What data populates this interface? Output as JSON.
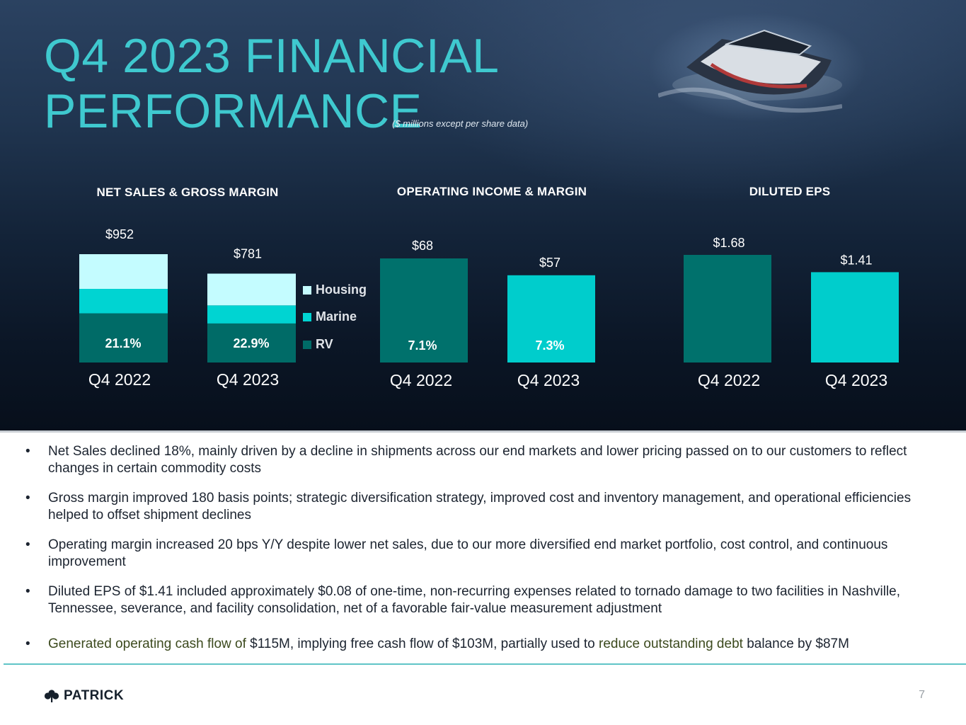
{
  "header": {
    "title_line1": "Q4 2023 FINANCIAL",
    "title_line2": "PERFORMANCE",
    "subtitle": "($ millions except per share data)"
  },
  "colors": {
    "housing": "#c4fcff",
    "marine": "#00d4d2",
    "rv": "#006b67",
    "q4_2022_bar": "#00716c",
    "q4_2023_bar": "#00cdcc",
    "title": "#3fc9cf",
    "highlight_text": "#3c4a1e"
  },
  "chart_data": [
    {
      "type": "bar",
      "stacked": true,
      "title": "NET SALES & GROSS MARGIN",
      "categories": [
        "Q4 2022",
        "Q4 2023"
      ],
      "totals": [
        952,
        781
      ],
      "total_labels": [
        "$952",
        "$781"
      ],
      "series": [
        {
          "name": "RV",
          "values": [
            432,
            343
          ]
        },
        {
          "name": "Marine",
          "values": [
            215,
            159
          ]
        },
        {
          "name": "Housing",
          "values": [
            305,
            279
          ]
        }
      ],
      "legend": [
        "Housing",
        "Marine",
        "RV"
      ],
      "legend_position": "right",
      "inner_labels": [
        "21.1%",
        "22.9%"
      ],
      "inner_label_meaning": "gross margin"
    },
    {
      "type": "bar",
      "title": "OPERATING INCOME & MARGIN",
      "categories": [
        "Q4 2022",
        "Q4 2023"
      ],
      "values": [
        68,
        57
      ],
      "value_labels": [
        "$68",
        "$57"
      ],
      "inner_labels": [
        "7.1%",
        "7.3%"
      ],
      "inner_label_meaning": "operating margin"
    },
    {
      "type": "bar",
      "title": "DILUTED EPS",
      "categories": [
        "Q4 2022",
        "Q4 2023"
      ],
      "values": [
        1.68,
        1.41
      ],
      "value_labels": [
        "$1.68",
        "$1.41"
      ]
    }
  ],
  "bullets": [
    {
      "text": "Net Sales declined 18%, mainly driven by a decline in shipments across our end markets and lower pricing passed on to our customers to reflect changes in certain commodity costs"
    },
    {
      "text": "Gross margin improved 180 basis points; strategic diversification strategy, improved cost and inventory management, and operational efficiencies helped to offset shipment declines"
    },
    {
      "text": "Operating margin increased 20 bps Y/Y despite lower net sales, due to our more diversified end market portfolio, cost control, and continuous improvement"
    },
    {
      "text": "Diluted EPS of $1.41 included approximately $0.08 of one-time, non-recurring expenses related to tornado damage to two facilities in Nashville, Tennessee, severance, and facility consolidation, net of a favorable fair-value measurement adjustment"
    },
    {
      "part1": "Generated operating cash flow of",
      "part2": " $115M, implying free cash flow of $103M, partially used to ",
      "part3": "reduce outstanding debt",
      "part4": " balance by $87M"
    }
  ],
  "footer": {
    "logo_text": "PATRICK",
    "page_number": "7"
  }
}
